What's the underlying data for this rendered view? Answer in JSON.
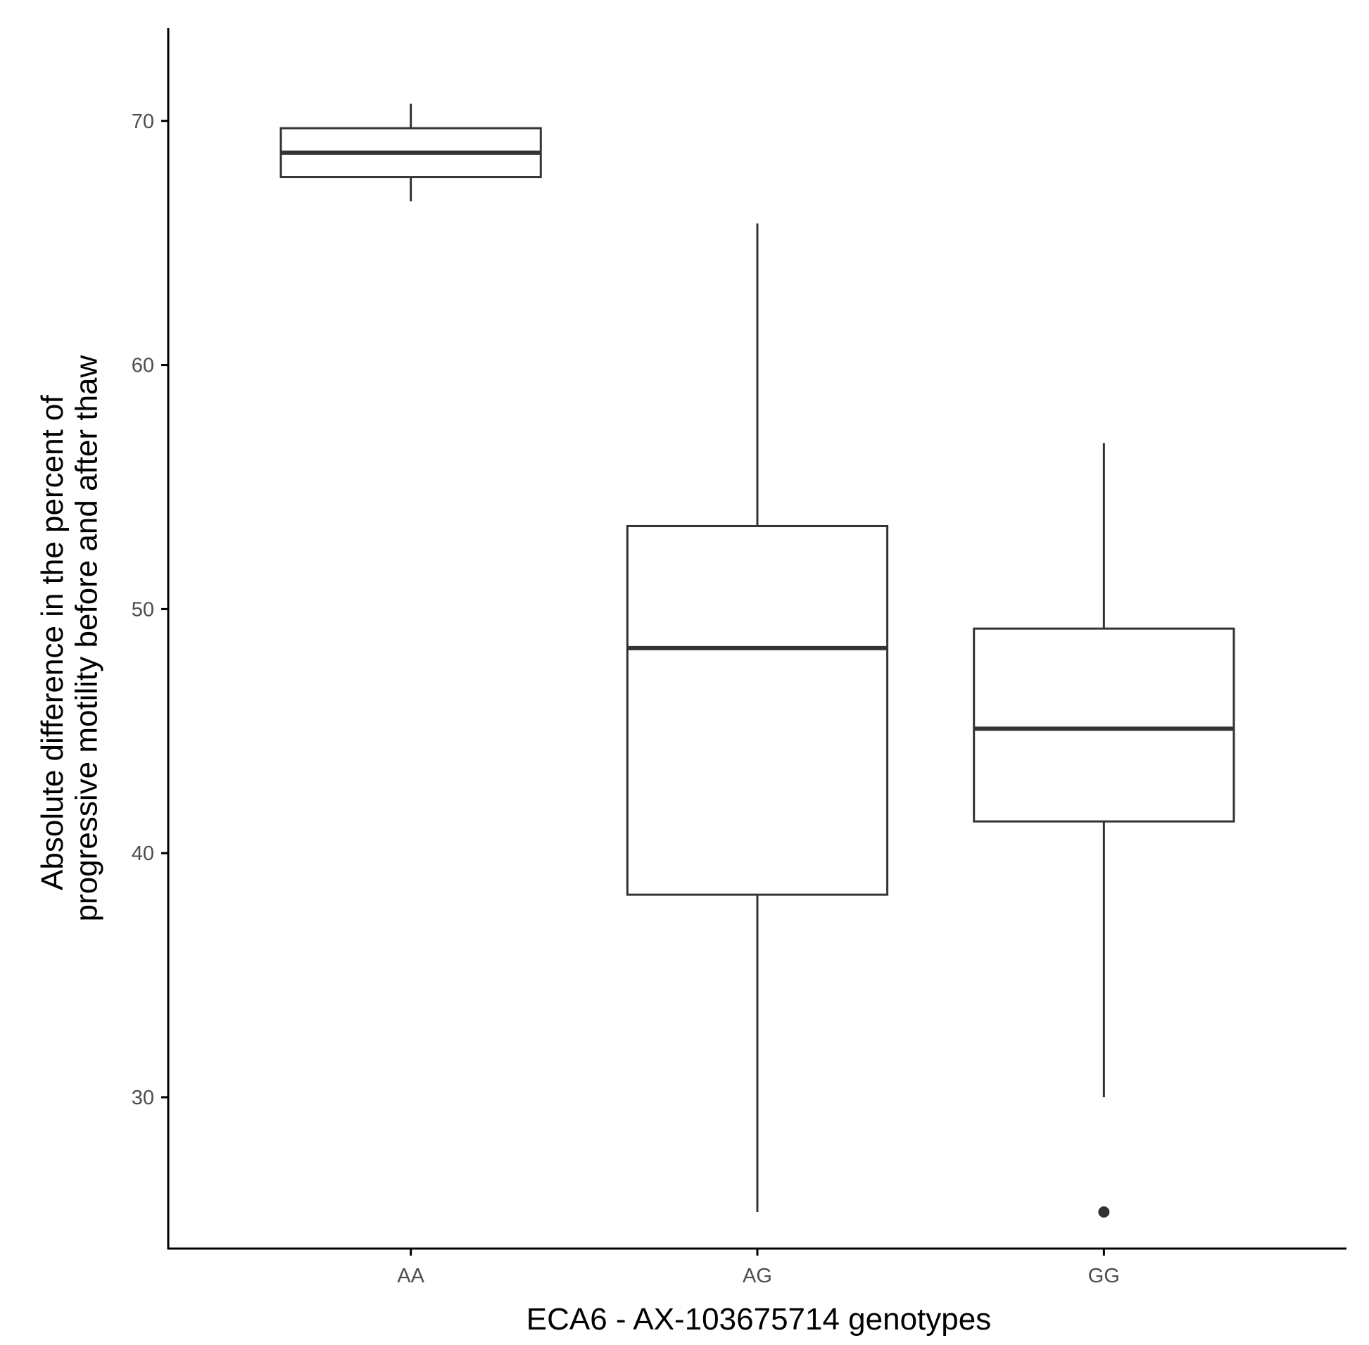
{
  "chart_data": {
    "type": "boxplot",
    "title": "",
    "xlabel": "ECA6 - AX-103675714 genotypes",
    "ylabel_lines": [
      "Absolute difference in the percent of",
      "progressive motility before and after thaw"
    ],
    "categories": [
      "AA",
      "AG",
      "GG"
    ],
    "boxes": [
      {
        "category": "AA",
        "whisker_low": 66.7,
        "q1": 67.7,
        "median": 68.7,
        "q3": 69.7,
        "whisker_high": 70.7,
        "outliers": []
      },
      {
        "category": "AG",
        "whisker_low": 25.3,
        "q1": 38.3,
        "median": 48.4,
        "q3": 53.4,
        "whisker_high": 65.8,
        "outliers": []
      },
      {
        "category": "GG",
        "whisker_low": 30.0,
        "q1": 41.3,
        "median": 45.1,
        "q3": 49.2,
        "whisker_high": 56.8,
        "outliers": [
          25.3
        ]
      }
    ],
    "y_ticks": [
      30,
      40,
      50,
      60,
      70
    ],
    "ylim": [
      23.8,
      73.8
    ],
    "grid": false,
    "legend": "none",
    "colors": {
      "box_stroke": "#333333",
      "box_fill": "#ffffff",
      "axis": "#000000",
      "tick_text": "#4d4d4d"
    }
  }
}
